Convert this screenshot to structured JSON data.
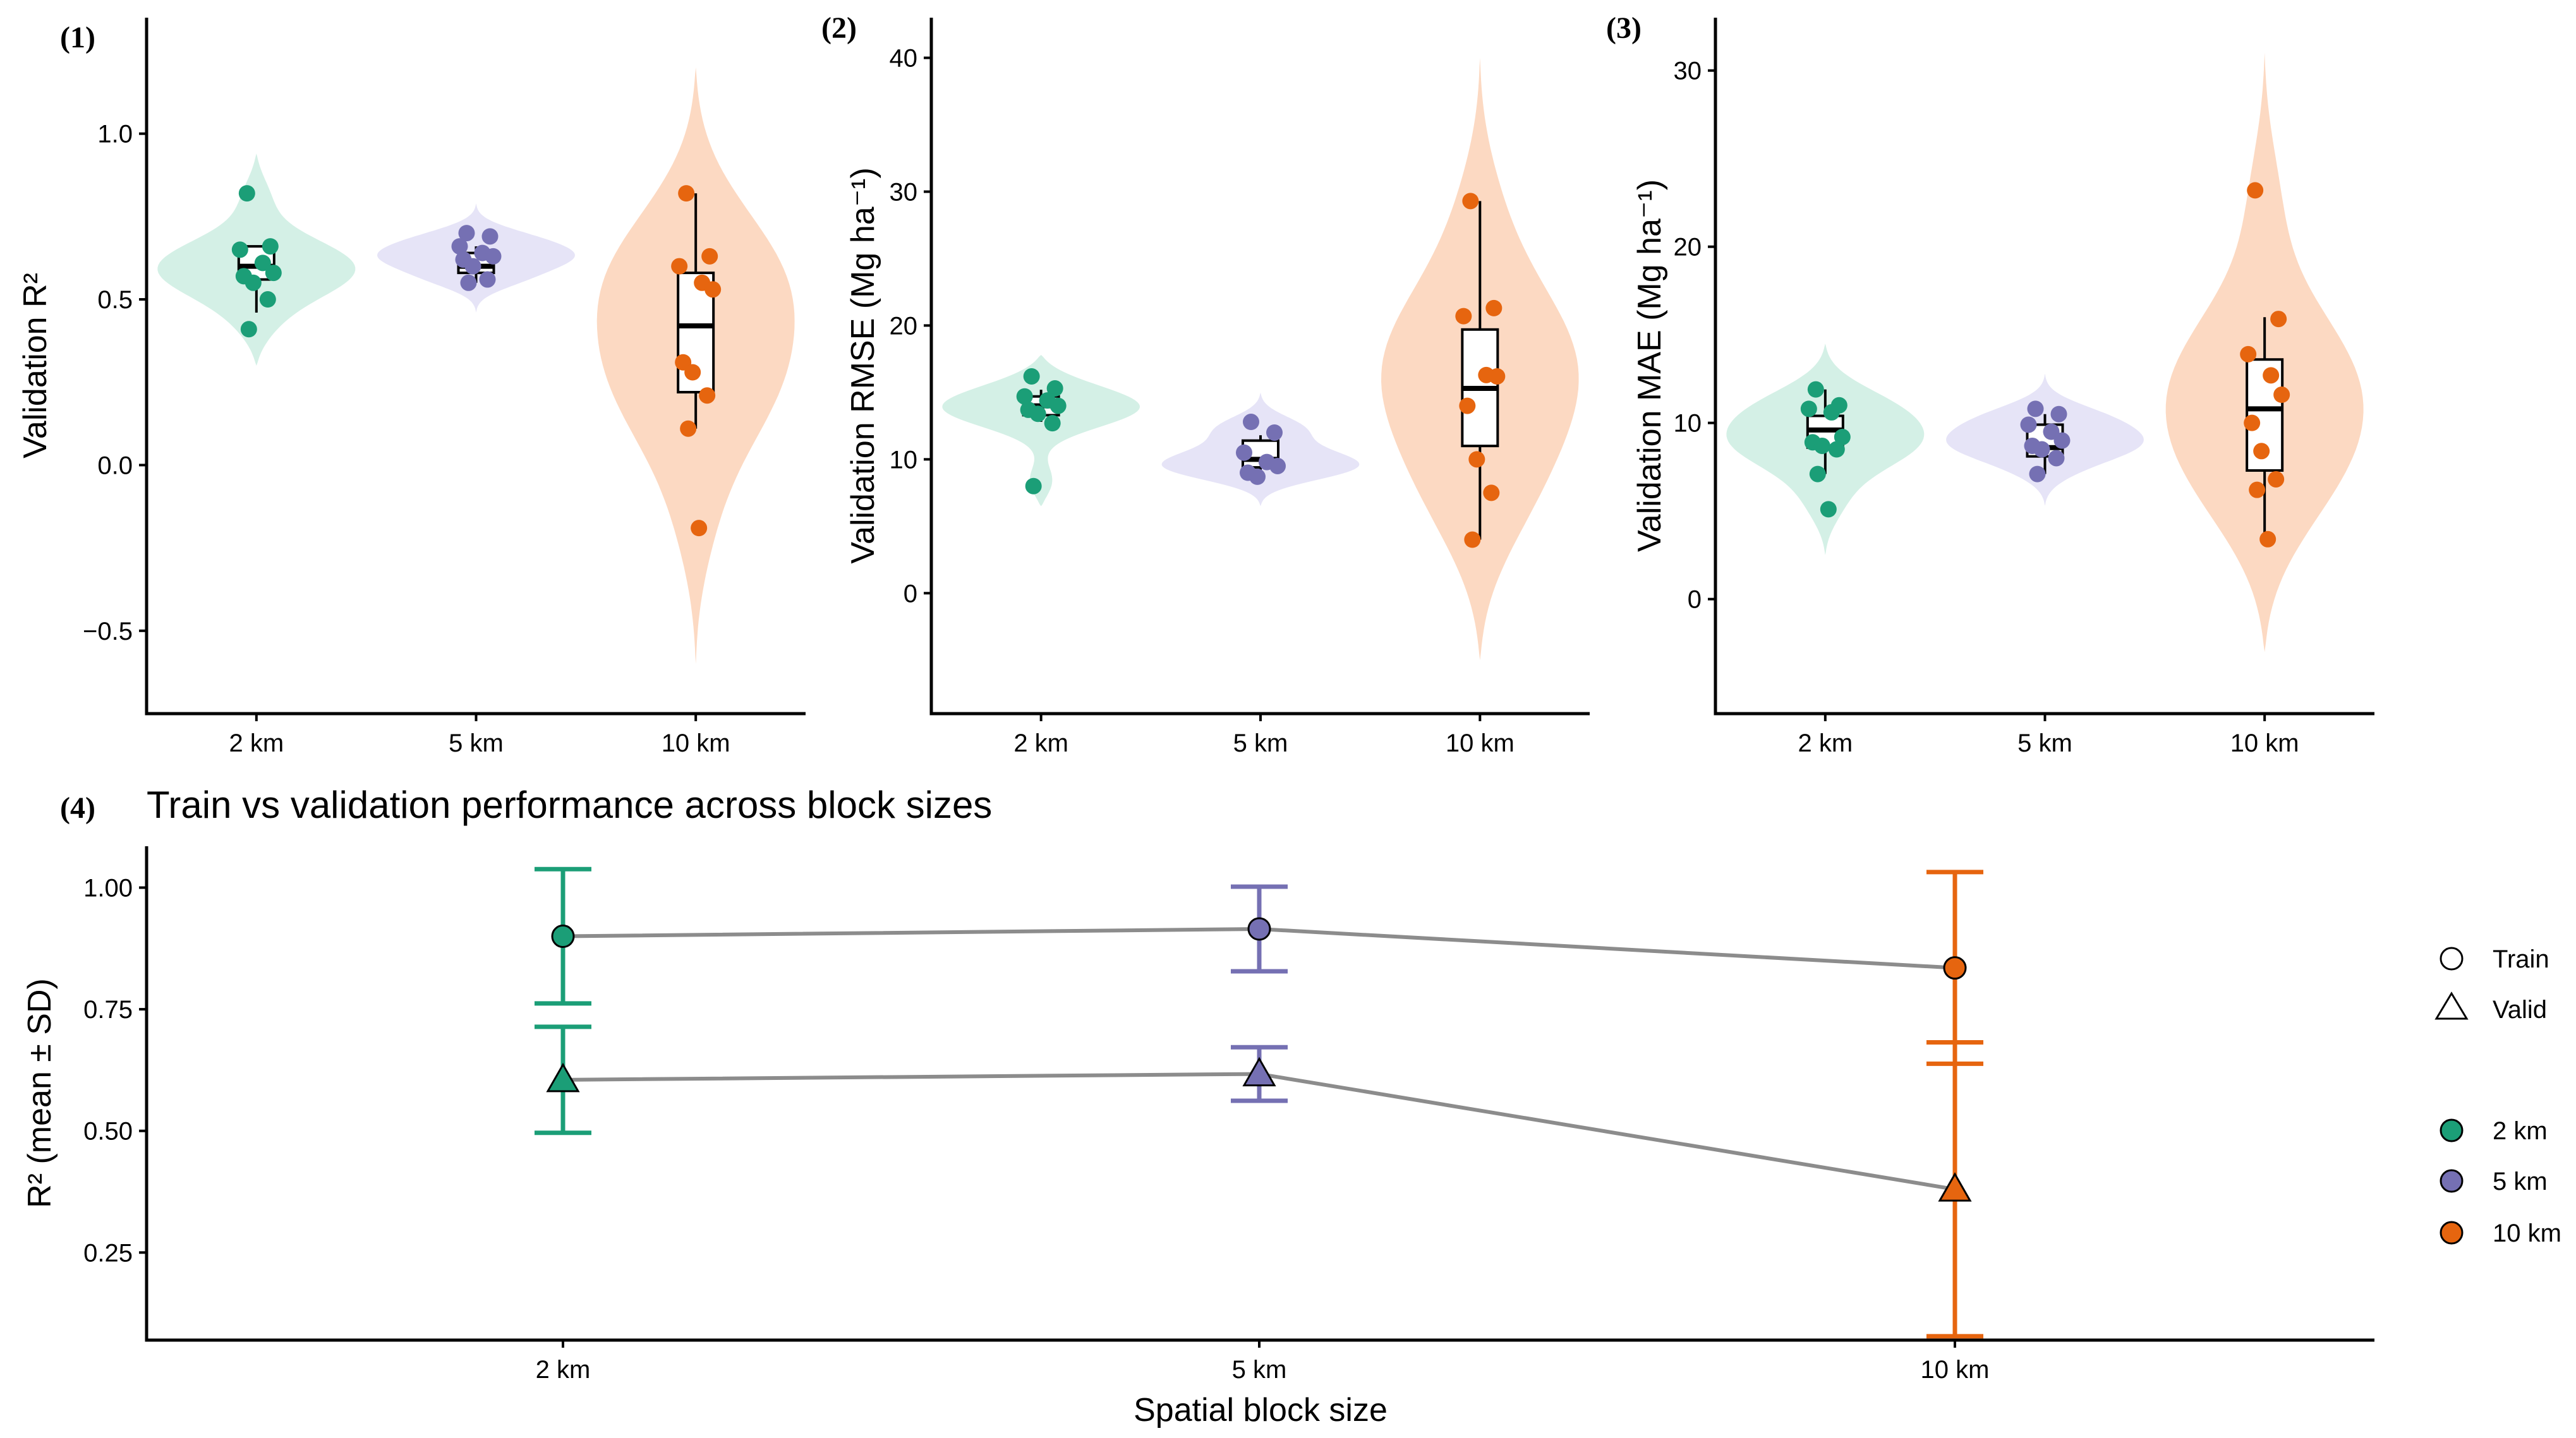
{
  "colors": {
    "2 km": "#1b9e77",
    "5 km": "#7570b3",
    "10 km": "#e6650f"
  },
  "violin_fill": {
    "2 km": "#d4f0e6",
    "5 km": "#e6e4f7",
    "10 km": "#fcd9c2"
  },
  "chart_data": [
    {
      "type": "violin-box",
      "tag": "(1)",
      "categories": [
        "2 km",
        "5 km",
        "10 km"
      ],
      "ylabel": "Validation R²",
      "ylim": [
        -0.75,
        1.35
      ],
      "yticks": [
        -0.5,
        0.0,
        0.5,
        1.0
      ],
      "ytick_labels": [
        "−0.5",
        "0.0",
        "0.5",
        "1.0"
      ],
      "violin_range": [
        [
          0.3,
          0.94
        ],
        [
          0.46,
          0.79
        ],
        [
          -0.6,
          1.2
        ]
      ],
      "points": [
        [
          0.82,
          0.66,
          0.65,
          0.61,
          0.58,
          0.57,
          0.55,
          0.5,
          0.41
        ],
        [
          0.7,
          0.69,
          0.66,
          0.64,
          0.63,
          0.62,
          0.6,
          0.56,
          0.55
        ],
        [
          0.82,
          0.63,
          0.6,
          0.55,
          0.53,
          0.31,
          0.28,
          0.21,
          0.11,
          -0.19
        ]
      ],
      "box": [
        [
          0.46,
          0.56,
          0.6,
          0.66,
          0.66
        ],
        [
          0.55,
          0.58,
          0.6,
          0.64,
          0.66
        ],
        [
          0.11,
          0.22,
          0.42,
          0.58,
          0.82
        ]
      ]
    },
    {
      "type": "violin-box",
      "tag": "(2)",
      "categories": [
        "2 km",
        "5 km",
        "10 km"
      ],
      "ylabel": "Validation RMSE (Mg ha⁻¹)",
      "ylim": [
        -9,
        43
      ],
      "yticks": [
        0,
        10,
        20,
        30,
        40
      ],
      "ytick_labels": [
        "0",
        "10",
        "20",
        "30",
        "40"
      ],
      "violin_range": [
        [
          6.5,
          17.8
        ],
        [
          6.5,
          15.0
        ],
        [
          -5,
          40
        ]
      ],
      "points": [
        [
          16.2,
          15.3,
          14.7,
          14.4,
          14.0,
          13.7,
          13.4,
          12.7,
          8.0
        ],
        [
          12.8,
          12.0,
          10.5,
          9.8,
          9.5,
          9.0,
          8.7
        ],
        [
          29.3,
          21.3,
          20.7,
          16.3,
          16.2,
          14.0,
          10.0,
          7.5,
          4.0
        ]
      ],
      "box": [
        [
          12.8,
          13.3,
          14.0,
          14.7,
          15.2
        ],
        [
          8.8,
          9.4,
          10.0,
          11.4,
          11.8
        ],
        [
          4.0,
          11.0,
          15.3,
          19.7,
          29.3
        ]
      ]
    },
    {
      "type": "violin-box",
      "tag": "(3)",
      "categories": [
        "2 km",
        "5 km",
        "10 km"
      ],
      "ylabel": "Validation MAE (Mg ha⁻¹)",
      "ylim": [
        -6.5,
        33
      ],
      "yticks": [
        0,
        10,
        20,
        30
      ],
      "ytick_labels": [
        "0",
        "10",
        "20",
        "30"
      ],
      "violin_range": [
        [
          2.5,
          14.5
        ],
        [
          5.3,
          12.8
        ],
        [
          -3,
          31
        ]
      ],
      "points": [
        [
          11.9,
          11.0,
          10.8,
          10.6,
          9.2,
          8.9,
          8.7,
          8.5,
          7.1,
          5.1
        ],
        [
          10.8,
          10.5,
          9.9,
          9.5,
          9.0,
          8.7,
          8.5,
          8.0,
          7.1
        ],
        [
          23.2,
          15.9,
          13.9,
          12.7,
          11.6,
          10.0,
          8.4,
          6.8,
          6.2,
          3.4
        ]
      ],
      "box": [
        [
          7.1,
          8.6,
          9.6,
          10.4,
          11.9
        ],
        [
          7.1,
          8.1,
          8.6,
          9.9,
          10.5
        ],
        [
          3.4,
          7.3,
          10.8,
          13.6,
          16.0
        ]
      ]
    },
    {
      "type": "line-errorbar",
      "tag": "(4)",
      "title": "Train vs validation performance across block sizes",
      "categories": [
        "2 km",
        "5 km",
        "10 km"
      ],
      "xlabel": "Spatial block size",
      "ylabel": "R² (mean ± SD)",
      "ylim": [
        0.07,
        1.085
      ],
      "yticks": [
        0.25,
        0.5,
        0.75,
        1.0
      ],
      "ytick_labels": [
        "0.25",
        "0.50",
        "0.75",
        "1.00"
      ],
      "series": [
        {
          "name": "Train",
          "marker": "circle",
          "mean": [
            0.9,
            0.915,
            0.835
          ],
          "sd": [
            0.138,
            0.087,
            0.197
          ]
        },
        {
          "name": "Valid",
          "marker": "triangle",
          "mean": [
            0.605,
            0.617,
            0.38
          ],
          "sd": [
            0.109,
            0.055,
            0.302
          ]
        }
      ],
      "legend_shape_title": "",
      "legend_shapes": [
        "Train",
        "Valid"
      ],
      "legend_colors": [
        "2 km",
        "5 km",
        "10 km"
      ]
    }
  ]
}
